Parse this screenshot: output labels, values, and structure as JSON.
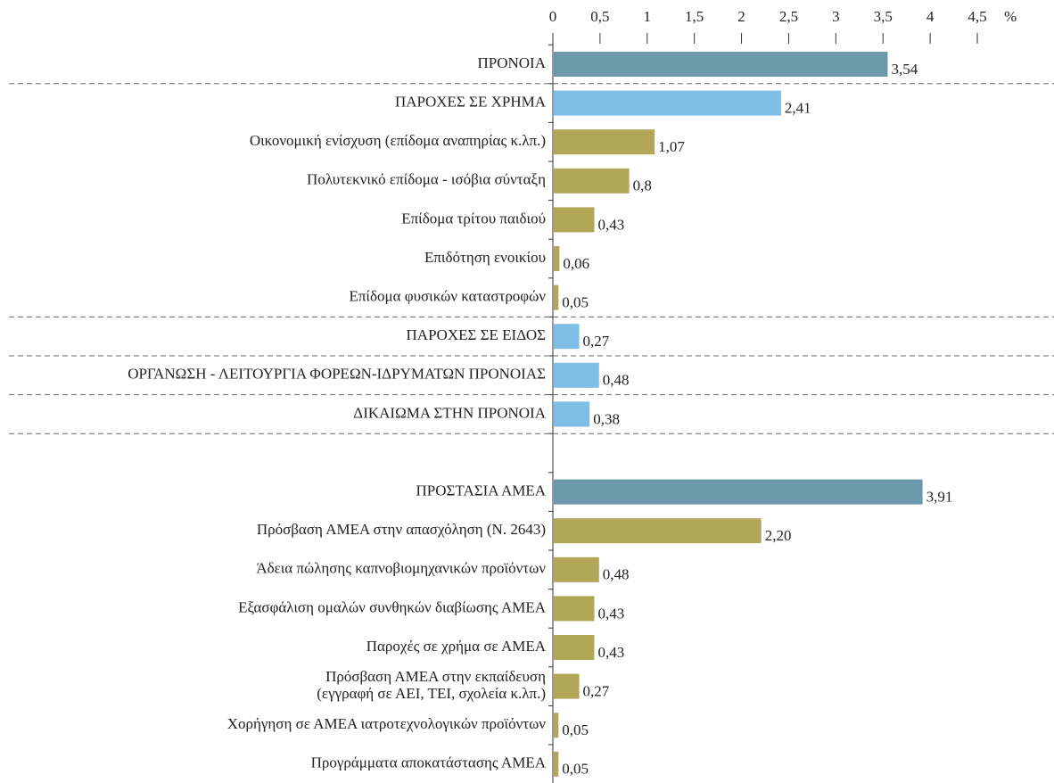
{
  "chart_data": {
    "type": "barh",
    "xlabel": "%",
    "categories": [
      "ΠΡΟΝΟΙΑ",
      "ΠΑΡΟΧΕΣ ΣΕ ΧΡΗΜΑ",
      "Οικονομική ενίσχυση (επίδομα αναπηρίας κ.λπ.)",
      "Πολυτεκνικό επίδομα - ισόβια σύνταξη",
      "Επίδομα τρίτου παιδιού",
      "Επιδότηση ενοικίου",
      "Επίδομα φυσικών καταστροφών",
      "ΠΑΡΟΧΕΣ ΣΕ ΕΙΔΟΣ",
      "ΟΡΓΑΝΩΣΗ - ΛΕΙΤΟΥΡΓΙΑ ΦΟΡΕΩΝ-ΙΔΡΥΜΑΤΩΝ ΠΡΟΝΟΙΑΣ",
      "ΔΙΚΑΙΩΜΑ ΣΤΗΝ ΠΡΟΝΟΙΑ",
      null,
      "ΠΡΟΣΤΑΣΙΑ ΑΜΕΑ",
      "Πρόσβαση ΑΜΕΑ στην απασχόληση (Ν. 2643)",
      "Άδεια πώλησης καπνοβιομηχανικών προϊόντων",
      "Εξασφάλιση ομαλών συνθηκών διαβίωσης ΑΜΕΑ",
      "Παροχές σε χρήμα σε ΑΜΕΑ",
      "Πρόσβαση ΑΜΕΑ στην εκπαίδευση\n(εγγραφή σε ΑΕΙ, ΤΕΙ, σχολεία κ.λπ.)",
      "Χορήγηση σε ΑΜΕΑ ιατροτεχνολογικών προϊόντων",
      "Προγράμματα αποκατάστασης ΑΜΕΑ"
    ],
    "values": [
      3.54,
      2.41,
      1.07,
      0.8,
      0.43,
      0.06,
      0.05,
      0.27,
      0.48,
      0.38,
      null,
      3.91,
      2.2,
      0.48,
      0.43,
      0.43,
      0.27,
      0.05,
      0.05
    ],
    "value_labels": [
      "3,54",
      "2,41",
      "1,07",
      "0,8",
      "0,43",
      "0,06",
      "0,05",
      "0,27",
      "0,48",
      "0,38",
      null,
      "3,91",
      "2,20",
      "0,48",
      "0,43",
      "0,43",
      "0,27",
      "0,05",
      "0,05"
    ],
    "colors": [
      "#6b98ab",
      "#7ebee7",
      "#b2a756",
      "#b2a756",
      "#b2a756",
      "#b2a756",
      "#b2a756",
      "#7ebee7",
      "#7ebee7",
      "#7ebee7",
      null,
      "#6b98ab",
      "#b2a756",
      "#b2a756",
      "#b2a756",
      "#b2a756",
      "#b2a756",
      "#b2a756",
      "#b2a756"
    ],
    "xlim": [
      0,
      4.5
    ],
    "xticks": [
      0,
      {
        "value": 0.5,
        "label": "0,5"
      },
      1,
      {
        "value": 1.5,
        "label": "1,5"
      },
      2,
      {
        "value": 2.5,
        "label": "2,5"
      },
      3,
      {
        "value": 3.5,
        "label": "3,5"
      },
      4,
      {
        "value": 4.5,
        "label": "4,5"
      }
    ]
  }
}
